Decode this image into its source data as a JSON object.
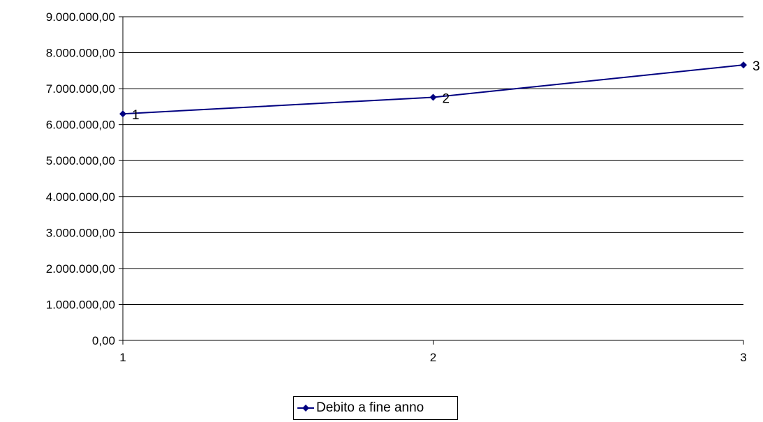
{
  "chart_data": {
    "type": "line",
    "x": [
      1,
      2,
      3
    ],
    "categories": [
      "1",
      "2",
      "3"
    ],
    "series": [
      {
        "name": "Debito a fine anno",
        "values": [
          6300000,
          6760000,
          7660000
        ],
        "color": "#000080",
        "data_labels": [
          "1",
          "2",
          "3"
        ]
      }
    ],
    "ylim": [
      0,
      9000000
    ],
    "yticks": [
      0,
      1000000,
      2000000,
      3000000,
      4000000,
      5000000,
      6000000,
      7000000,
      8000000,
      9000000
    ],
    "ytick_labels": [
      "0,00",
      "1.000.000,00",
      "2.000.000,00",
      "3.000.000,00",
      "4.000.000,00",
      "5.000.000,00",
      "6.000.000,00",
      "7.000.000,00",
      "8.000.000,00",
      "9.000.000,00"
    ],
    "xtick_labels": [
      "1",
      "2",
      "3"
    ],
    "grid": true,
    "legend_position": "bottom",
    "title": "",
    "xlabel": "",
    "ylabel": ""
  }
}
